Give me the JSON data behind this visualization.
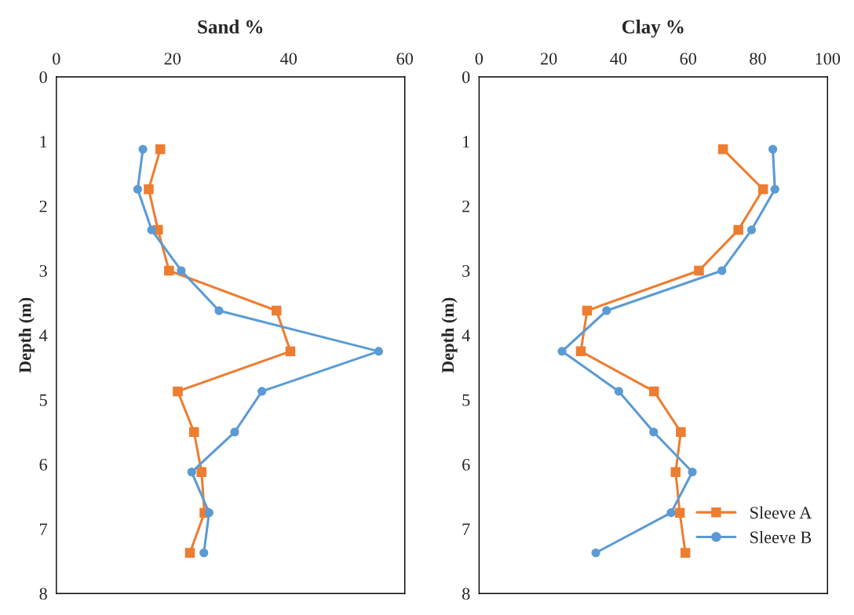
{
  "chart_data": [
    {
      "type": "line",
      "title": "Sand %",
      "ylabel": "Depth (m)",
      "series": [
        {
          "color": "#ed7d31",
          "marker": "square",
          "x": [
            17.9,
            15.9,
            17.5,
            19.4,
            37.9,
            40.3,
            20.9,
            23.7,
            25.0,
            25.5,
            23.0
          ],
          "values": [
            1.12,
            1.74,
            2.37,
            3.0,
            3.62,
            4.25,
            4.87,
            5.5,
            6.12,
            6.75,
            7.37
          ]
        },
        {
          "color": "#5b9bd5",
          "marker": "circle",
          "x": [
            14.9,
            14.0,
            16.4,
            21.5,
            28.0,
            55.5,
            35.4,
            30.7,
            23.3,
            26.3,
            25.4
          ],
          "values": [
            1.12,
            1.74,
            2.37,
            3.0,
            3.62,
            4.25,
            4.87,
            5.5,
            6.12,
            6.75,
            7.37
          ]
        }
      ],
      "xlim": [
        0,
        60
      ],
      "xticks": [
        0,
        20,
        40,
        60
      ],
      "ylim": [
        8,
        0
      ],
      "yticks": [
        0,
        1,
        2,
        3,
        4,
        5,
        6,
        7,
        8
      ],
      "grid": false,
      "legend": false
    },
    {
      "type": "line",
      "title": "Clay %",
      "ylabel": "Depth (m)",
      "series": [
        {
          "name": "Sleeve A",
          "color": "#ed7d31",
          "marker": "square",
          "x": [
            70.0,
            81.5,
            74.4,
            63.1,
            31.0,
            29.2,
            50.2,
            57.9,
            56.4,
            57.6,
            59.2
          ],
          "values": [
            1.12,
            1.74,
            2.37,
            3.0,
            3.62,
            4.25,
            4.87,
            5.5,
            6.12,
            6.75,
            7.37
          ]
        },
        {
          "name": "Sleeve B",
          "color": "#5b9bd5",
          "marker": "circle",
          "x": [
            84.3,
            84.9,
            78.2,
            69.7,
            36.6,
            23.8,
            40.1,
            50.1,
            61.2,
            55.1,
            33.5
          ],
          "values": [
            1.12,
            1.74,
            2.37,
            3.0,
            3.62,
            4.25,
            4.87,
            5.5,
            6.12,
            6.75,
            7.37
          ]
        }
      ],
      "xlim": [
        0,
        100
      ],
      "xticks": [
        0,
        20,
        40,
        60,
        80,
        100
      ],
      "ylim": [
        8,
        0
      ],
      "yticks": [
        0,
        1,
        2,
        3,
        4,
        5,
        6,
        7,
        8
      ],
      "grid": false,
      "legend": "bottom right"
    }
  ]
}
